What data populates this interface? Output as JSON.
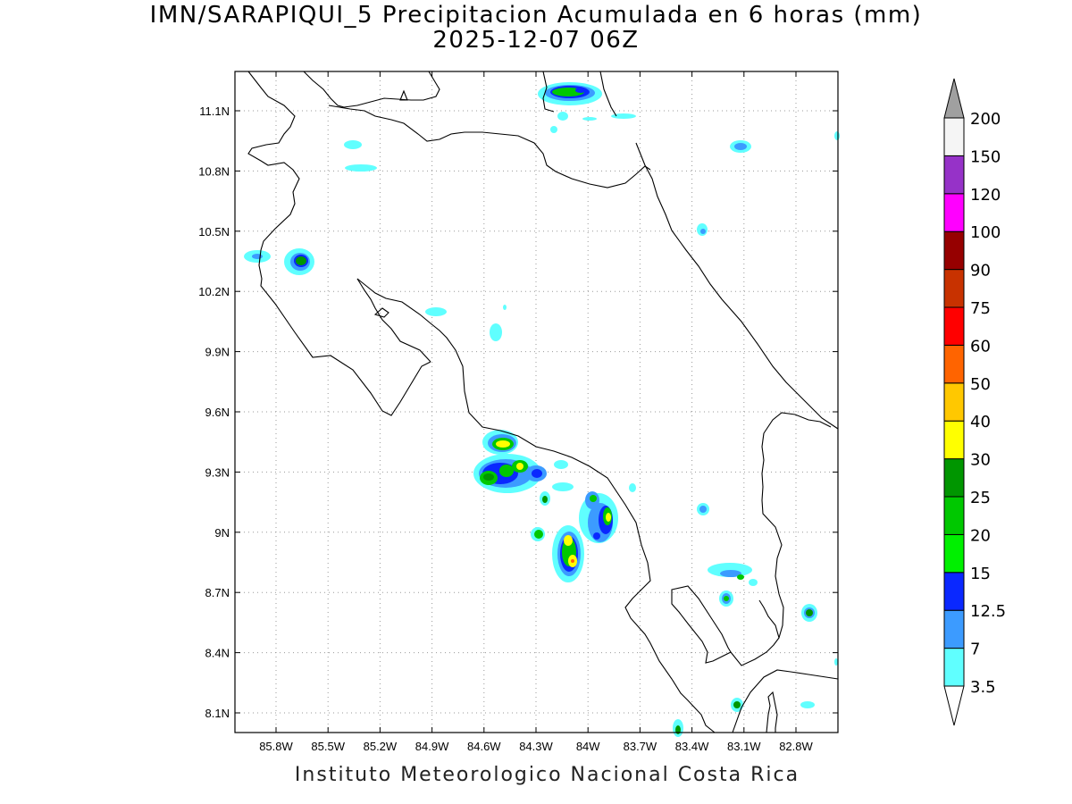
{
  "title": {
    "line1": "IMN/SARAPIQUI_5 Precipitacion Acumulada en 6 horas (mm)",
    "line2": "2025-12-07 06Z"
  },
  "footer": "Instituto Meteorologico Nacional Costa Rica",
  "axes": {
    "x_ticks": [
      "85.8W",
      "85.5W",
      "85.2W",
      "84.9W",
      "84.6W",
      "84.3W",
      "84W",
      "83.7W",
      "83.4W",
      "83.1W",
      "82.8W"
    ],
    "y_ticks": [
      "11.1N",
      "10.8N",
      "10.5N",
      "10.2N",
      "9.9N",
      "9.6N",
      "9.3N",
      "9N",
      "8.7N",
      "8.4N",
      "8.1N"
    ],
    "grid": "dotted"
  },
  "colorbar": {
    "levels": [
      "3.5",
      "7",
      "12.5",
      "15",
      "20",
      "25",
      "30",
      "40",
      "50",
      "60",
      "75",
      "90",
      "100",
      "120",
      "150",
      "200"
    ],
    "colors": [
      "#60ffff",
      "#3c9bff",
      "#0a28ff",
      "#00f000",
      "#00c800",
      "#009600",
      "#ffff00",
      "#ffc800",
      "#ff6400",
      "#ff0000",
      "#c83200",
      "#960000",
      "#ff00ff",
      "#9632c8",
      "#f5f5f5",
      "#a0a0a0"
    ]
  }
}
